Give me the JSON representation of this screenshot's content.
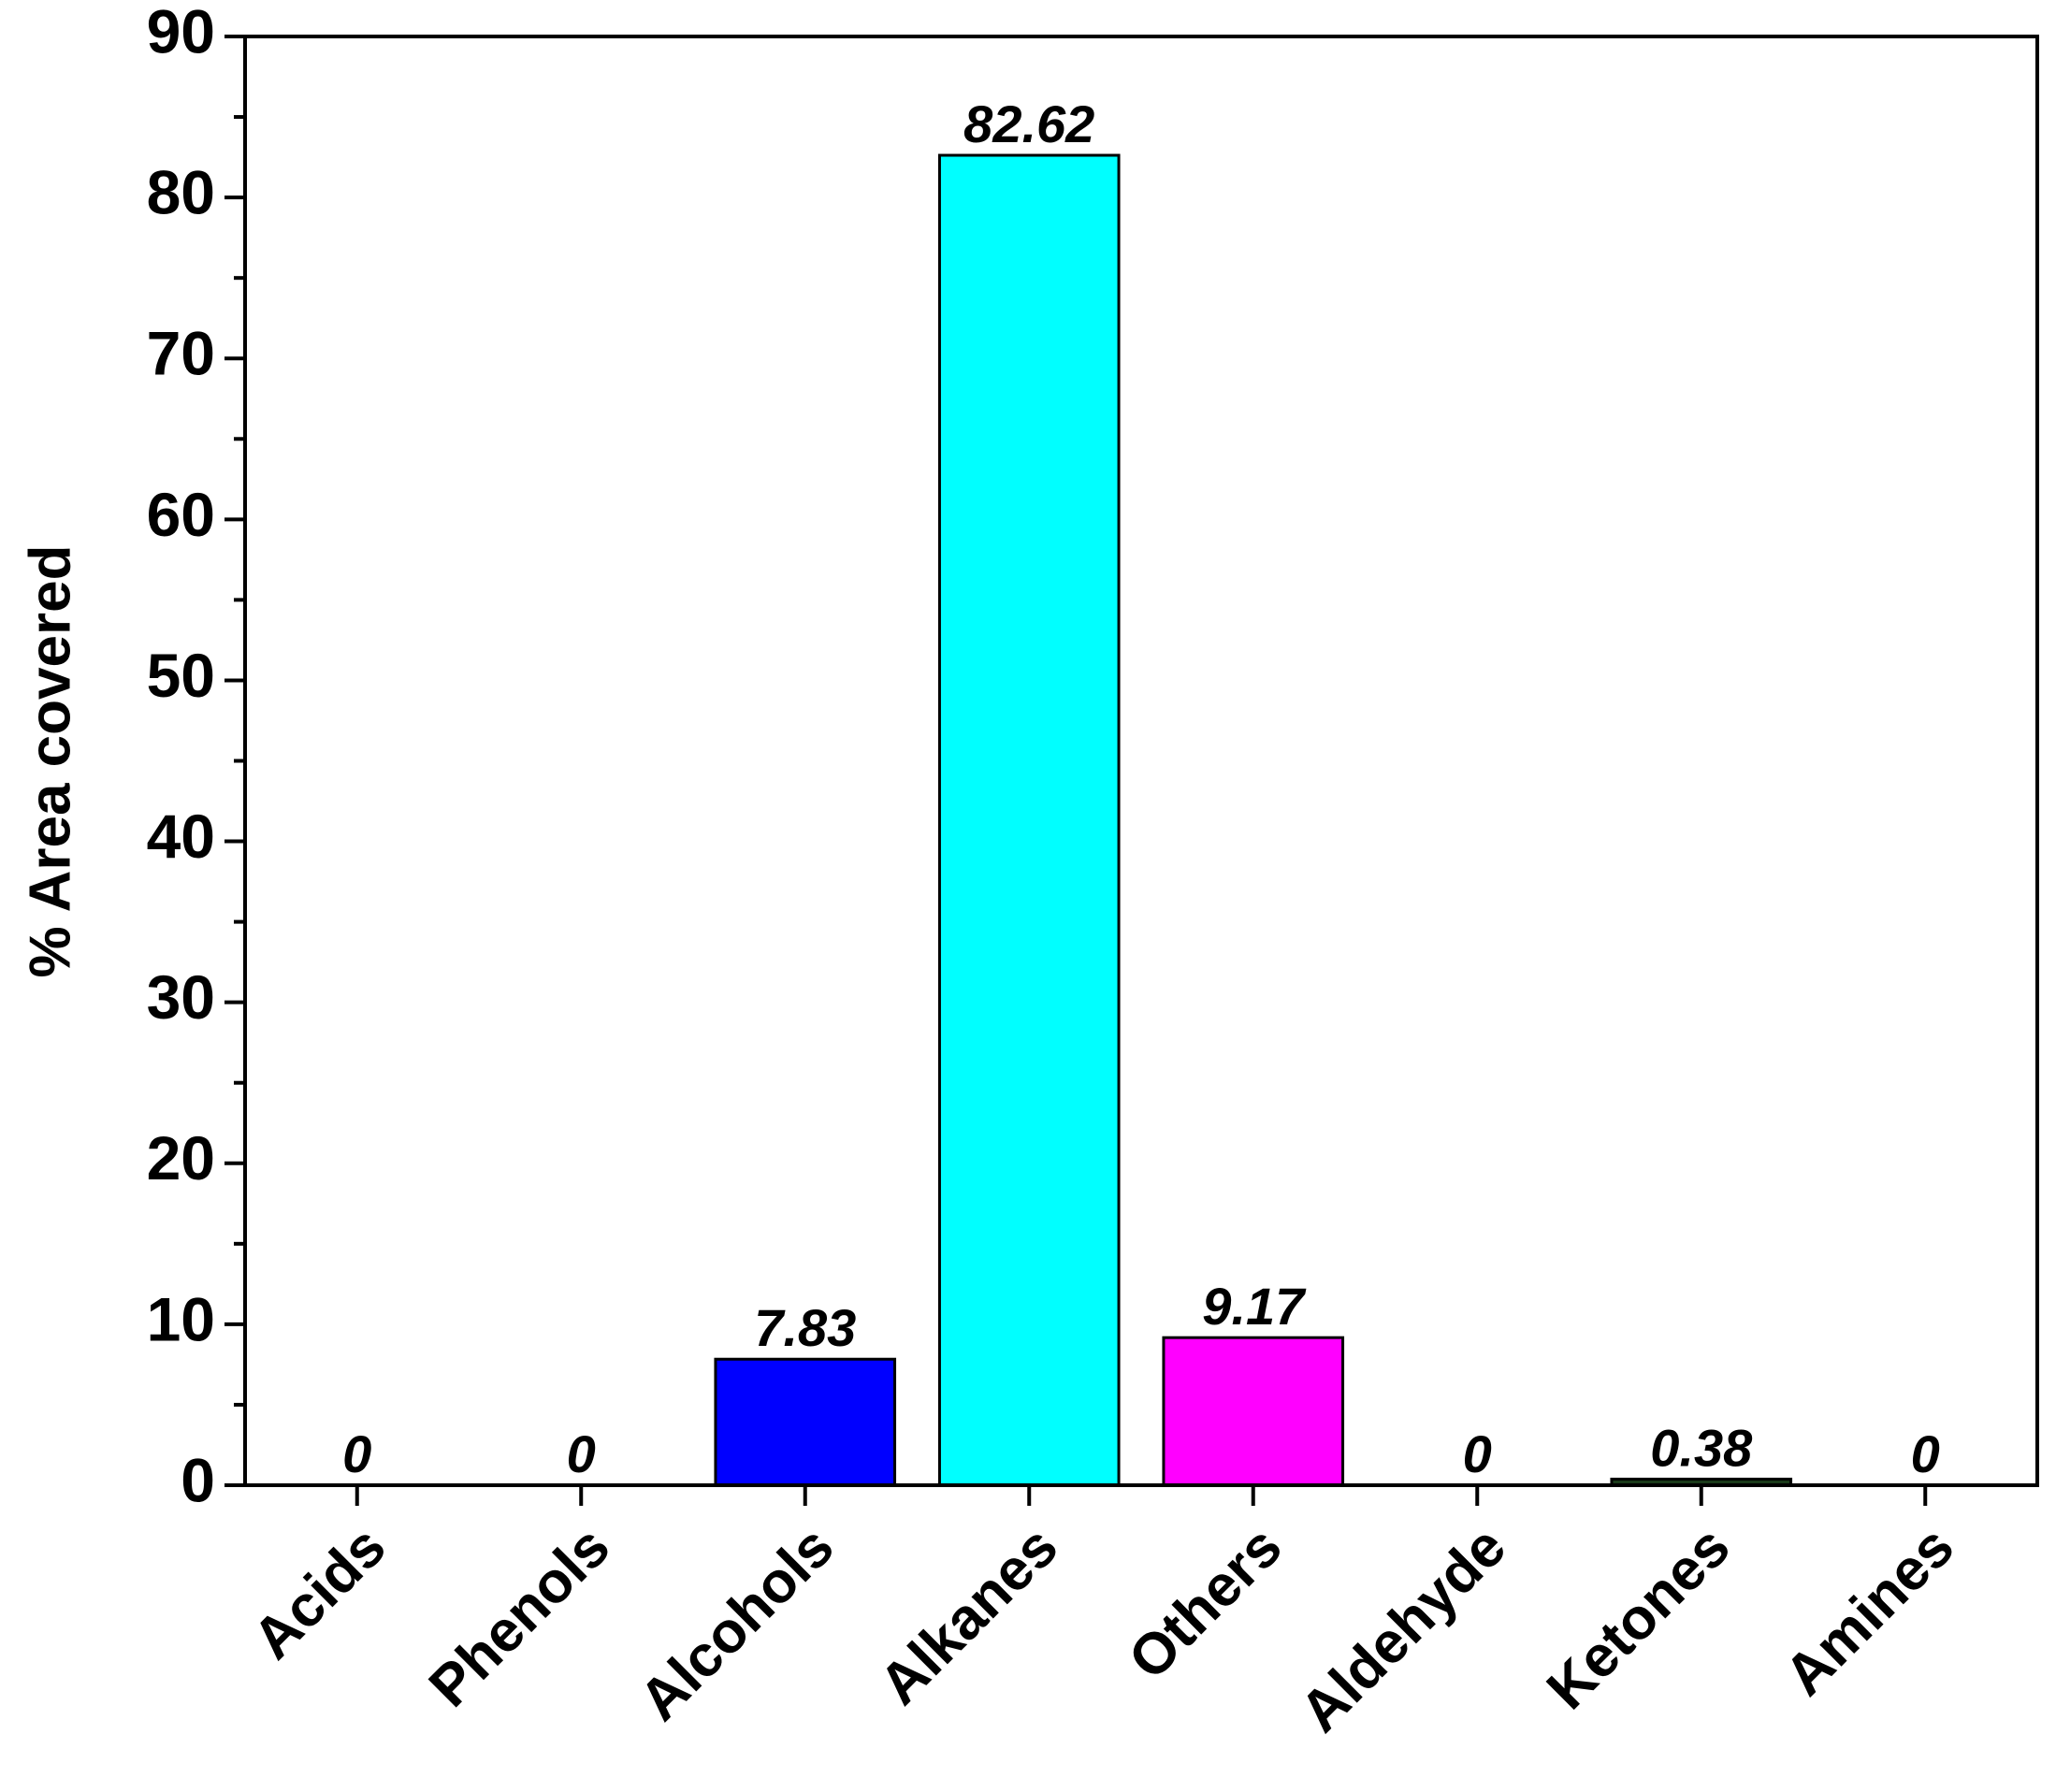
{
  "chart_data": {
    "type": "bar",
    "ylabel": "% Area covered",
    "categories": [
      "Acids",
      "Phenols",
      "Alcohols",
      "Alkanes",
      "Others",
      "Aldehyde",
      "Ketones",
      "Amines"
    ],
    "values": [
      0,
      0,
      7.83,
      82.62,
      9.17,
      0,
      0.38,
      0
    ],
    "colors": [
      "#000000",
      "#ff0000",
      "#0000ff",
      "#00ffff",
      "#ff00ff",
      "#ffff00",
      "#1a3a1a",
      "#000080"
    ],
    "ylim": [
      0,
      90
    ],
    "yticks": [
      0,
      10,
      20,
      30,
      40,
      50,
      60,
      70,
      80,
      90
    ],
    "grid": false
  }
}
